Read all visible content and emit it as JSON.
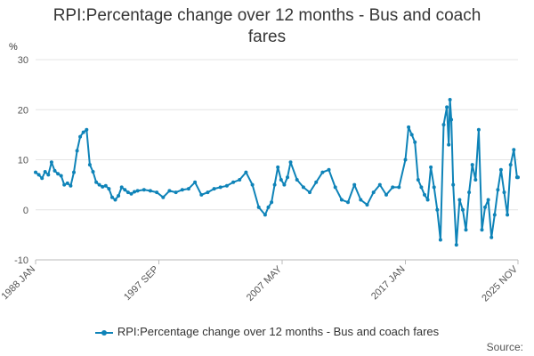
{
  "chart_data": {
    "type": "line",
    "title": "RPI:Percentage change over 12 months - Bus and coach fares",
    "ylabel": "%",
    "ylim": [
      -10,
      30
    ],
    "yticks": [
      -10,
      0,
      10,
      20,
      30
    ],
    "x_start": "1988 JAN",
    "x_end": "2025 NOV",
    "x_tick_labels": [
      "1988 JAN",
      "1997 SEP",
      "2007 MAY",
      "2017 JAN",
      "2025 NOV"
    ],
    "grid": true,
    "legend_position": "bottom",
    "series": [
      {
        "name": "RPI:Percentage change over 12 months - Bus and coach fares",
        "color": "#0e83b8",
        "x": [
          1988.0,
          1988.25,
          1988.5,
          1988.75,
          1989.0,
          1989.25,
          1989.5,
          1989.75,
          1990.0,
          1990.25,
          1990.5,
          1990.75,
          1991.0,
          1991.25,
          1991.5,
          1991.75,
          1992.0,
          1992.25,
          1992.5,
          1992.75,
          1993.0,
          1993.25,
          1993.5,
          1993.75,
          1994.0,
          1994.25,
          1994.5,
          1994.75,
          1995.0,
          1995.25,
          1995.5,
          1995.75,
          1996.0,
          1996.5,
          1997.0,
          1997.5,
          1998.0,
          1998.5,
          1999.0,
          1999.5,
          2000.0,
          2000.5,
          2001.0,
          2001.5,
          2002.0,
          2002.5,
          2003.0,
          2003.5,
          2004.0,
          2004.5,
          2005.0,
          2005.5,
          2006.0,
          2006.25,
          2006.5,
          2006.75,
          2007.0,
          2007.25,
          2007.5,
          2007.75,
          2008.0,
          2008.5,
          2009.0,
          2009.5,
          2010.0,
          2010.5,
          2011.0,
          2011.5,
          2012.0,
          2012.5,
          2013.0,
          2013.5,
          2014.0,
          2014.5,
          2015.0,
          2015.5,
          2016.0,
          2016.5,
          2017.0,
          2017.25,
          2017.5,
          2017.75,
          2018.0,
          2018.25,
          2018.5,
          2018.75,
          2019.0,
          2019.25,
          2019.5,
          2019.75,
          2020.0,
          2020.25,
          2020.4,
          2020.5,
          2020.6,
          2020.75,
          2021.0,
          2021.25,
          2021.5,
          2021.75,
          2022.0,
          2022.25,
          2022.5,
          2022.75,
          2023.0,
          2023.25,
          2023.5,
          2023.75,
          2024.0,
          2024.25,
          2024.5,
          2024.75,
          2025.0,
          2025.25,
          2025.5,
          2025.75,
          2025.83
        ],
        "values": [
          7.5,
          7.0,
          6.3,
          7.6,
          7.0,
          9.5,
          7.8,
          7.2,
          6.8,
          5.0,
          5.3,
          4.8,
          7.5,
          11.8,
          14.6,
          15.5,
          16.0,
          9.0,
          7.6,
          5.5,
          5.0,
          4.6,
          4.8,
          4.2,
          2.5,
          2.0,
          2.8,
          4.5,
          4.0,
          3.5,
          3.2,
          3.6,
          3.8,
          4.0,
          3.8,
          3.5,
          2.5,
          3.8,
          3.5,
          4.0,
          4.2,
          5.5,
          3.0,
          3.5,
          4.2,
          4.5,
          4.8,
          5.5,
          6.0,
          7.5,
          5.0,
          0.5,
          -1.0,
          0.5,
          1.5,
          5.0,
          8.5,
          6.0,
          5.0,
          6.5,
          9.5,
          6.0,
          4.5,
          3.5,
          5.5,
          7.5,
          8.0,
          4.5,
          2.0,
          1.5,
          5.0,
          2.0,
          1.0,
          3.5,
          5.0,
          3.0,
          4.5,
          4.5,
          10.0,
          16.5,
          15.0,
          13.5,
          6.0,
          4.5,
          3.0,
          2.0,
          8.5,
          4.5,
          0.0,
          -6.0,
          17.0,
          20.5,
          13.0,
          22.0,
          18.0,
          5.0,
          -7.0,
          2.0,
          0.0,
          -4.0,
          3.5,
          9.0,
          6.0,
          16.0,
          -4.0,
          0.5,
          2.0,
          -5.5,
          -1.0,
          4.0,
          8.0,
          3.5,
          -1.0,
          9.0,
          12.0,
          6.5,
          6.5
        ]
      }
    ]
  },
  "legend": {
    "label": "RPI:Percentage change over 12 months - Bus and coach fares"
  },
  "footer": {
    "source_label": "Source:"
  }
}
